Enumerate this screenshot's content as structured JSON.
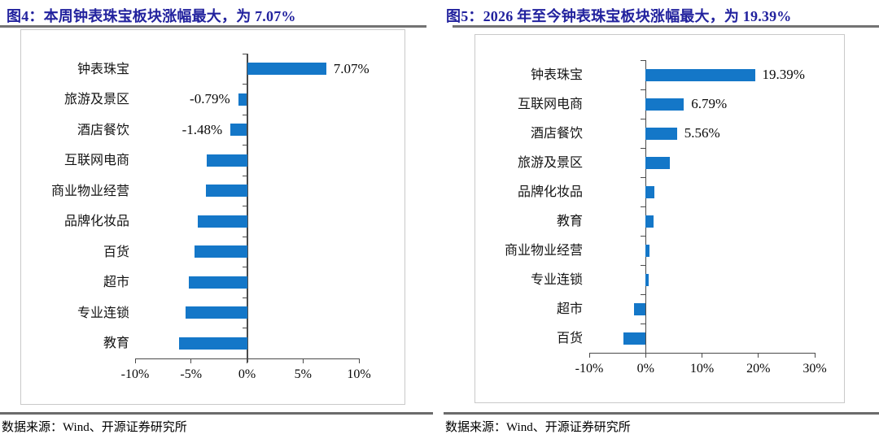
{
  "colors": {
    "bar": "#1477C8",
    "title": "#22229E",
    "axis": "#4A4A4A",
    "box_border": "#C9C9C9",
    "rule": "#6B6B6B",
    "text": "#000000"
  },
  "figures": [
    {
      "title": "图4：本周钟表珠宝板块涨幅最大，为 7.07%",
      "source": "数据来源：Wind、开源证券研究所"
    },
    {
      "title": "图5：2026 年至今钟表珠宝板块涨幅最大，为 19.39%",
      "source": "数据来源：Wind、开源证券研究所"
    }
  ],
  "chart_data": [
    {
      "type": "bar",
      "orientation": "horizontal",
      "title": "本周钟表珠宝板块涨幅最大，为 7.07%",
      "categories": [
        "钟表珠宝",
        "旅游及景区",
        "酒店餐饮",
        "互联网电商",
        "商业物业经营",
        "品牌化妆品",
        "百货",
        "超市",
        "专业连锁",
        "教育"
      ],
      "values": [
        7.07,
        -0.79,
        -1.48,
        -3.6,
        -3.7,
        -4.4,
        -4.7,
        -5.2,
        -5.5,
        -6.1
      ],
      "data_labels": [
        "7.07%",
        "-0.79%",
        "-1.48%",
        "",
        "",
        "",
        "",
        "",
        "",
        ""
      ],
      "xlim": [
        -10,
        10
      ],
      "xtick_values": [
        -10,
        -5,
        0,
        5,
        10
      ],
      "xtick_labels": [
        "-10%",
        "-5%",
        "0%",
        "5%",
        "10%"
      ],
      "xlabel": "",
      "ylabel": "",
      "grid": false,
      "legend": false
    },
    {
      "type": "bar",
      "orientation": "horizontal",
      "title": "2026 年至今钟表珠宝板块涨幅最大，为 19.39%",
      "categories": [
        "钟表珠宝",
        "互联网电商",
        "酒店餐饮",
        "旅游及景区",
        "品牌化妆品",
        "教育",
        "商业物业经营",
        "专业连锁",
        "超市",
        "百货"
      ],
      "values": [
        19.39,
        6.79,
        5.56,
        4.3,
        1.6,
        1.4,
        0.7,
        0.5,
        -2.1,
        -4.0
      ],
      "data_labels": [
        "19.39%",
        "6.79%",
        "5.56%",
        "",
        "",
        "",
        "",
        "",
        "",
        ""
      ],
      "xlim": [
        -10,
        30
      ],
      "xtick_values": [
        -10,
        0,
        10,
        20,
        30
      ],
      "xtick_labels": [
        "-10%",
        "0%",
        "10%",
        "20%",
        "30%"
      ],
      "xlabel": "",
      "ylabel": "",
      "grid": false,
      "legend": false
    }
  ]
}
